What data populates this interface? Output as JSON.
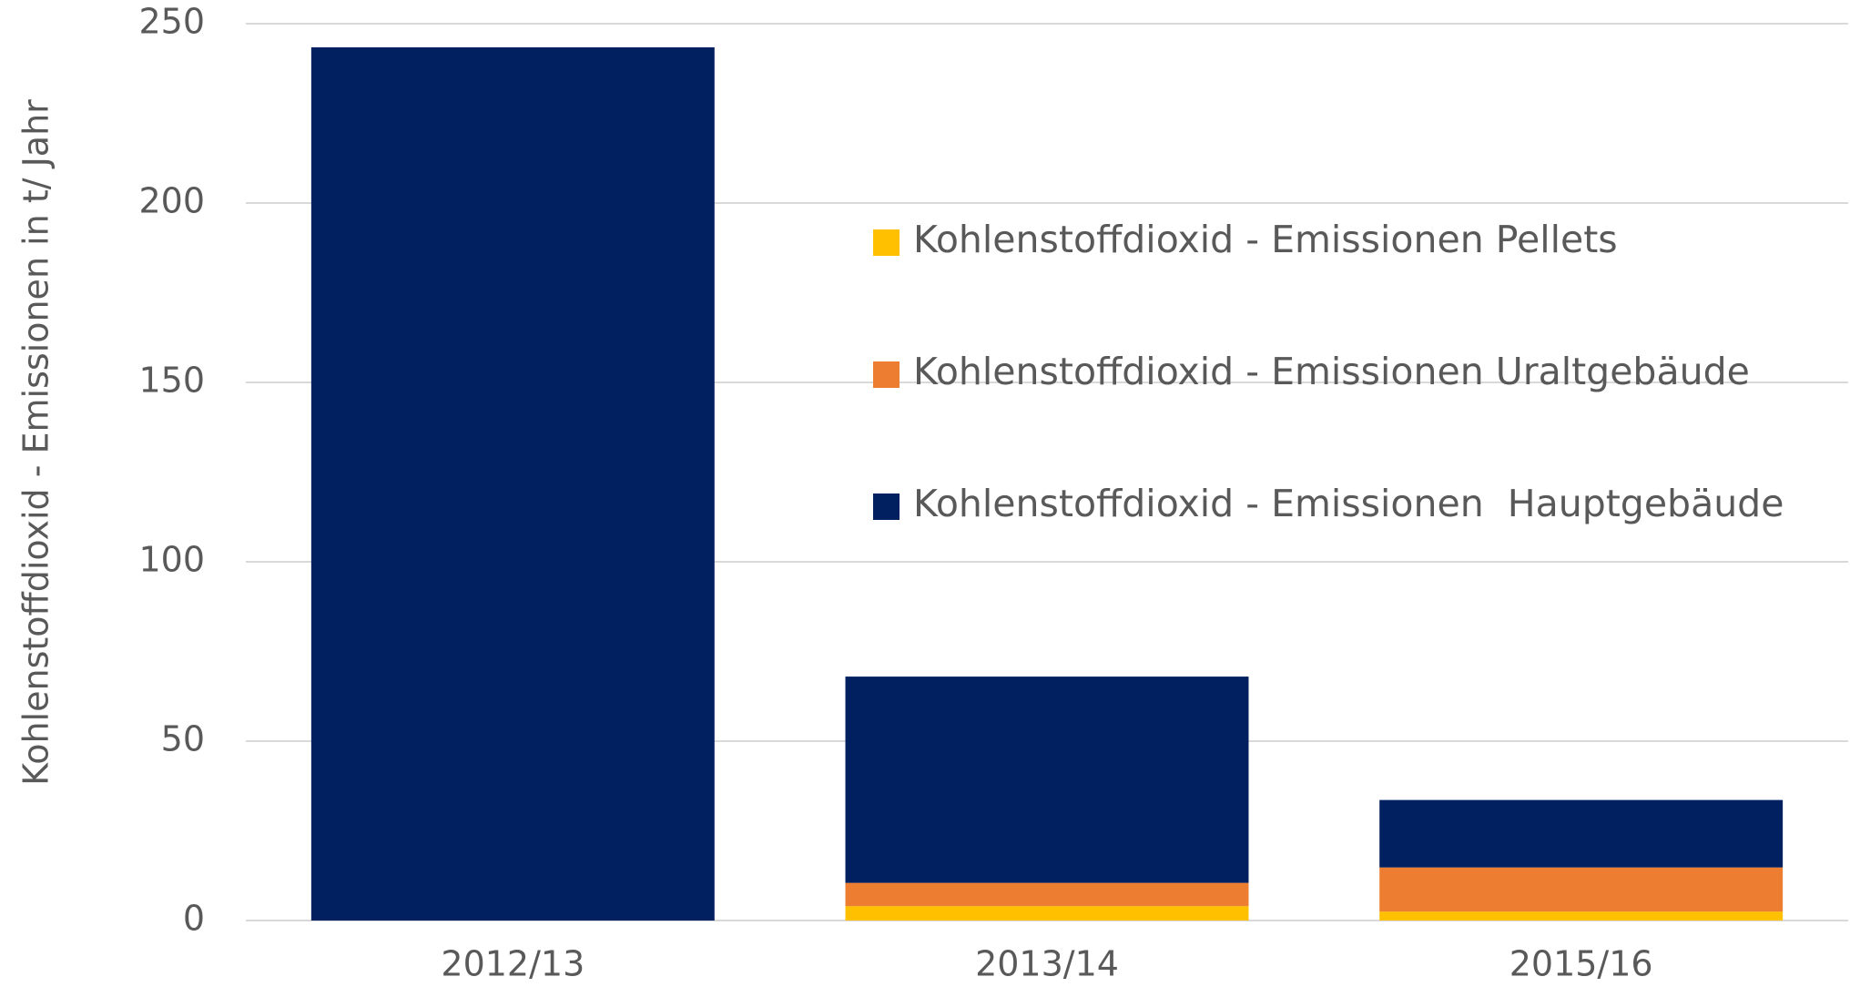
{
  "chart_data": {
    "type": "stacked_bar",
    "y_label": "Kohlenstoffdioxid - Emissionen in t/ Jahr",
    "categories": [
      "2012/13",
      "2013/14",
      "2015/16"
    ],
    "series": [
      {
        "name": "Kohlenstoffdioxid - Emissionen Pellets",
        "color": "#ffc000",
        "values": [
          0,
          4,
          2.5
        ]
      },
      {
        "name": "Kohlenstoffdioxid - Emissionen Uraltgebäude",
        "color": "#ed7d31",
        "values": [
          0,
          6.5,
          12.3
        ]
      },
      {
        "name": "Kohlenstoffdioxid - Emissionen  Hauptgebäude",
        "color": "#002060",
        "values": [
          243.4,
          57.5,
          18.8
        ]
      }
    ],
    "ylim": [
      0,
      250
    ],
    "yticks": [
      0,
      50,
      100,
      150,
      200,
      250
    ],
    "grid": true
  }
}
